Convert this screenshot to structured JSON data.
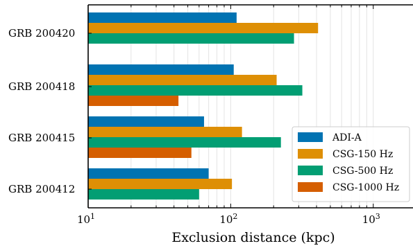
{
  "chart_data": {
    "type": "bar",
    "orientation": "horizontal",
    "xlabel": "Exclusion distance (kpc)",
    "xscale": "log",
    "xlim": [
      10,
      1900
    ],
    "x_ticks": [
      {
        "value": 10,
        "base": "10",
        "exp": "1"
      },
      {
        "value": 100,
        "base": "10",
        "exp": "2"
      },
      {
        "value": 1000,
        "base": "10",
        "exp": "3"
      }
    ],
    "categories": [
      "GRB 200420",
      "GRB 200418",
      "GRB 200415",
      "GRB 200412"
    ],
    "series": [
      {
        "name": "ADI-A",
        "color": "#0173b2",
        "values": [
          110,
          105,
          65,
          70
        ]
      },
      {
        "name": "CSG-150 Hz",
        "color": "#de8f05",
        "values": [
          410,
          210,
          120,
          102
        ]
      },
      {
        "name": "CSG-500 Hz",
        "color": "#029e73",
        "values": [
          278,
          318,
          225,
          60
        ]
      },
      {
        "name": "CSG-1000 Hz",
        "color": "#d55e00",
        "values": [
          null,
          43,
          53,
          null
        ]
      }
    ],
    "grid": {
      "x": true,
      "y": false,
      "color": "#e6e6e6"
    },
    "legend": {
      "position": "bottom-right"
    }
  }
}
